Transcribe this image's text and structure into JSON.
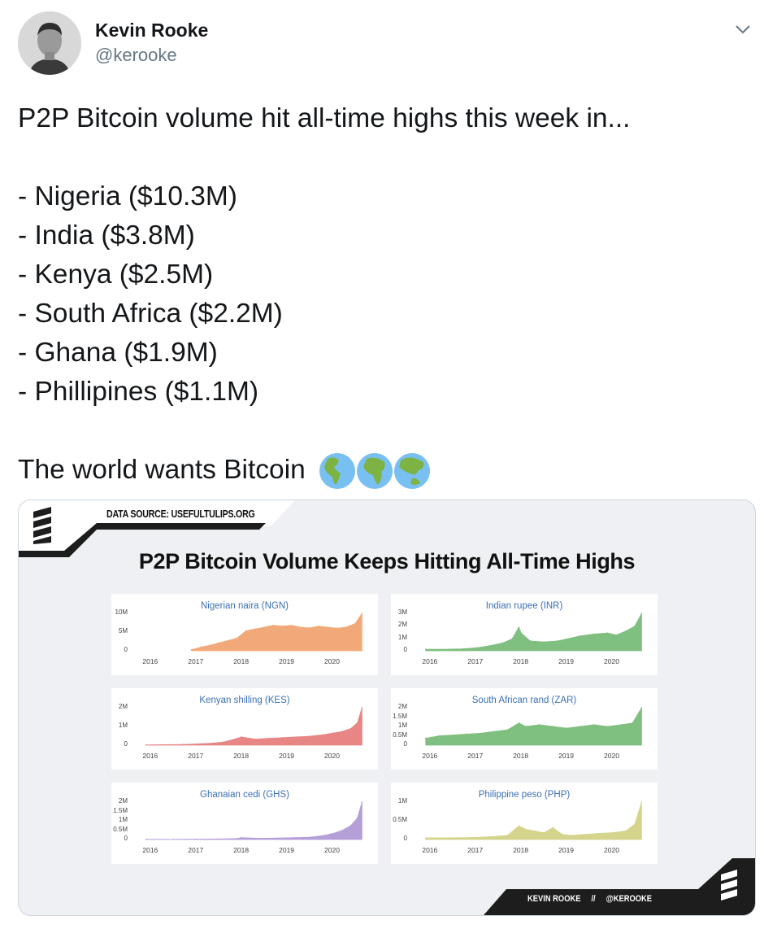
{
  "author": {
    "name": "Kevin Rooke",
    "handle": "@kerooke"
  },
  "icons": {
    "menu": "chevron-down-icon",
    "globes": [
      "globe-americas-icon",
      "globe-africa-icon",
      "globe-asia-icon"
    ]
  },
  "tweet": {
    "line1": "P2P Bitcoin volume hit all-time highs this week in...",
    "items": [
      "- Nigeria ($10.3M)",
      "- India ($3.8M)",
      "- Kenya ($2.5M)",
      "- South Africa ($2.2M)",
      "- Ghana ($1.9M)",
      "- Phillipines ($1.1M)"
    ],
    "closing": "The world wants Bitcoin"
  },
  "card": {
    "source": "DATA SOURCE: USEFULTULIPS.ORG",
    "title": "P2P Bitcoin Volume Keeps Hitting All-Time Highs",
    "footer": "KEVIN ROOKE     //     @KEROOKE"
  },
  "chart_data": [
    {
      "type": "area",
      "title": "Nigerian naira (NGN)",
      "color": "#f2a97a",
      "x_ticks": [
        "2016",
        "2017",
        "2018",
        "2019",
        "2020"
      ],
      "y_ticks": [
        "10M",
        "5M",
        "0"
      ],
      "ylim": [
        0,
        10.3
      ],
      "x_range": [
        2015.6,
        2020.75
      ],
      "x": [
        2016.9,
        2017.1,
        2017.3,
        2017.5,
        2017.7,
        2017.9,
        2018.1,
        2018.3,
        2018.5,
        2018.7,
        2018.9,
        2019.1,
        2019.3,
        2019.5,
        2019.7,
        2019.9,
        2020.1,
        2020.3,
        2020.5,
        2020.65
      ],
      "values": [
        0.3,
        1.0,
        1.5,
        2.2,
        2.8,
        3.5,
        5.5,
        6.0,
        6.5,
        7.0,
        6.8,
        7.0,
        6.5,
        6.3,
        6.8,
        6.5,
        6.2,
        6.5,
        7.5,
        10.3
      ]
    },
    {
      "type": "area",
      "title": "Indian rupee (INR)",
      "color": "#7fbf7f",
      "x_ticks": [
        "2016",
        "2017",
        "2018",
        "2019",
        "2020"
      ],
      "y_ticks": [
        "3M",
        "2M",
        "1M",
        "0"
      ],
      "ylim": [
        0,
        3.8
      ],
      "x_range": [
        2015.6,
        2020.75
      ],
      "x": [
        2015.9,
        2016.3,
        2016.7,
        2017.0,
        2017.3,
        2017.6,
        2017.8,
        2017.95,
        2018.0,
        2018.2,
        2018.5,
        2018.8,
        2019.0,
        2019.3,
        2019.6,
        2019.9,
        2020.1,
        2020.3,
        2020.5,
        2020.65
      ],
      "values": [
        0.15,
        0.15,
        0.2,
        0.3,
        0.5,
        0.8,
        1.2,
        2.4,
        1.8,
        1.0,
        0.9,
        1.0,
        1.2,
        1.5,
        1.7,
        1.8,
        1.6,
        2.0,
        2.5,
        3.8
      ]
    },
    {
      "type": "area",
      "title": "Kenyan shilling (KES)",
      "color": "#e88585",
      "x_ticks": [
        "2016",
        "2017",
        "2018",
        "2019",
        "2020"
      ],
      "y_ticks": [
        "2M",
        "1M",
        "0"
      ],
      "ylim": [
        0,
        2.5
      ],
      "x_range": [
        2015.6,
        2020.75
      ],
      "x": [
        2015.9,
        2016.3,
        2016.7,
        2017.0,
        2017.3,
        2017.6,
        2017.9,
        2018.0,
        2018.3,
        2018.6,
        2018.9,
        2019.2,
        2019.5,
        2019.8,
        2020.0,
        2020.2,
        2020.4,
        2020.55,
        2020.65
      ],
      "values": [
        0.02,
        0.03,
        0.05,
        0.08,
        0.12,
        0.2,
        0.45,
        0.55,
        0.4,
        0.45,
        0.5,
        0.55,
        0.6,
        0.7,
        0.8,
        0.9,
        1.1,
        1.5,
        2.5
      ]
    },
    {
      "type": "area",
      "title": "South African rand (ZAR)",
      "color": "#7fbf7f",
      "x_ticks": [
        "2016",
        "2017",
        "2018",
        "2019",
        "2020"
      ],
      "y_ticks": [
        "2M",
        "1.5M",
        "1M",
        "0.5M",
        "0"
      ],
      "ylim": [
        0,
        2.2
      ],
      "x_range": [
        2015.6,
        2020.75
      ],
      "x": [
        2015.9,
        2016.2,
        2016.5,
        2016.8,
        2017.1,
        2017.4,
        2017.7,
        2017.95,
        2018.1,
        2018.4,
        2018.7,
        2019.0,
        2019.3,
        2019.6,
        2019.9,
        2020.2,
        2020.45,
        2020.65
      ],
      "values": [
        0.4,
        0.55,
        0.6,
        0.65,
        0.7,
        0.8,
        0.9,
        1.3,
        1.1,
        1.2,
        1.1,
        1.0,
        1.1,
        1.2,
        1.1,
        1.2,
        1.3,
        2.2
      ]
    },
    {
      "type": "area",
      "title": "Ghanaian cedi (GHS)",
      "color": "#b49fd8",
      "x_ticks": [
        "2016",
        "2017",
        "2018",
        "2019",
        "2020"
      ],
      "y_ticks": [
        "2M",
        "1.5M",
        "1M",
        "0.5M",
        "0"
      ],
      "ylim": [
        0,
        1.9
      ],
      "x_range": [
        2015.6,
        2020.75
      ],
      "x": [
        2015.9,
        2016.5,
        2017.0,
        2017.5,
        2017.9,
        2018.0,
        2018.4,
        2018.8,
        2019.2,
        2019.5,
        2019.8,
        2020.0,
        2020.2,
        2020.4,
        2020.55,
        2020.65
      ],
      "values": [
        0.01,
        0.01,
        0.02,
        0.03,
        0.05,
        0.1,
        0.06,
        0.08,
        0.1,
        0.12,
        0.2,
        0.3,
        0.45,
        0.7,
        1.1,
        1.9
      ]
    },
    {
      "type": "area",
      "title": "Philippine peso (PHP)",
      "color": "#d4d48c",
      "x_ticks": [
        "2016",
        "2017",
        "2018",
        "2019",
        "2020"
      ],
      "y_ticks": [
        "1M",
        "0.5M",
        "0"
      ],
      "ylim": [
        0,
        1.1
      ],
      "x_range": [
        2015.6,
        2020.75
      ],
      "x": [
        2015.9,
        2016.4,
        2016.9,
        2017.3,
        2017.7,
        2017.95,
        2018.1,
        2018.3,
        2018.5,
        2018.7,
        2018.9,
        2019.1,
        2019.4,
        2019.7,
        2020.0,
        2020.3,
        2020.5,
        2020.65
      ],
      "values": [
        0.05,
        0.05,
        0.06,
        0.08,
        0.12,
        0.4,
        0.3,
        0.25,
        0.2,
        0.35,
        0.15,
        0.12,
        0.15,
        0.18,
        0.2,
        0.25,
        0.45,
        1.1
      ]
    }
  ]
}
